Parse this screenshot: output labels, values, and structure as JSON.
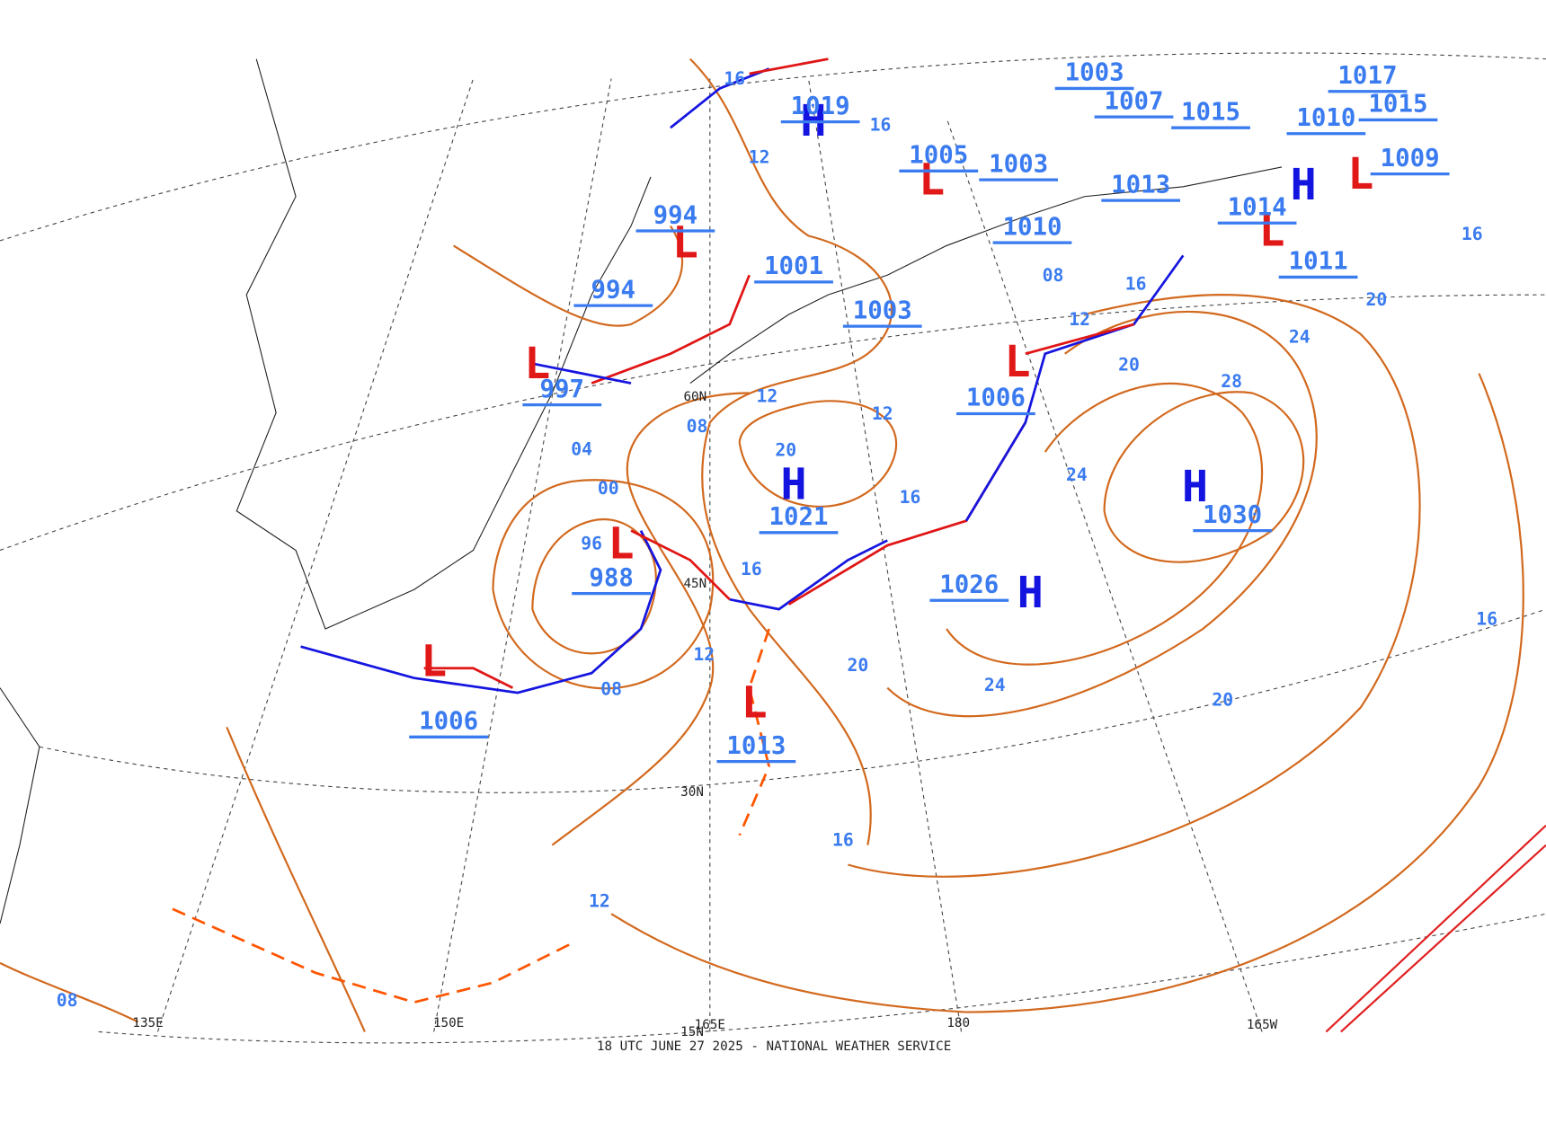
{
  "footer": "18 UTC JUNE 27 2025 - NATIONAL WEATHER SERVICE",
  "lon_labels": [
    "135E",
    "150E",
    "165E",
    "180",
    "165W"
  ],
  "lat_labels": [
    "60N",
    "45N",
    "30N",
    "15N"
  ],
  "centers": [
    {
      "type": "H",
      "pressure": 1030
    },
    {
      "type": "H",
      "pressure": 1026
    },
    {
      "type": "H",
      "pressure": 1021
    },
    {
      "type": "L",
      "pressure": 1013
    },
    {
      "type": "L",
      "pressure": 988
    },
    {
      "type": "L",
      "pressure": 1006
    },
    {
      "type": "L",
      "pressure": 997
    },
    {
      "type": "L",
      "pressure": 994
    },
    {
      "type": "L",
      "pressure": 1006
    },
    {
      "type": "H",
      "pressure": 1019
    },
    {
      "type": "L",
      "pressure": 1005
    },
    {
      "type": "L",
      "pressure": 1014
    },
    {
      "type": "L",
      "pressure": 1009
    },
    {
      "type": "H",
      "pressure": 1010
    }
  ],
  "pressure_labels": [
    1003,
    1010,
    1013,
    1001,
    1003,
    1011,
    1015,
    1017,
    1003,
    1007,
    1015,
    994
  ],
  "isobar_labels": [
    "16",
    "12",
    "16",
    "12",
    "08",
    "04",
    "00",
    "96",
    "16",
    "12",
    "08",
    "20",
    "12",
    "16",
    "20",
    "24",
    "20",
    "16",
    "16",
    "12",
    "08",
    "24",
    "28",
    "24",
    "20",
    "16",
    "20",
    "12",
    "08",
    "16"
  ]
}
